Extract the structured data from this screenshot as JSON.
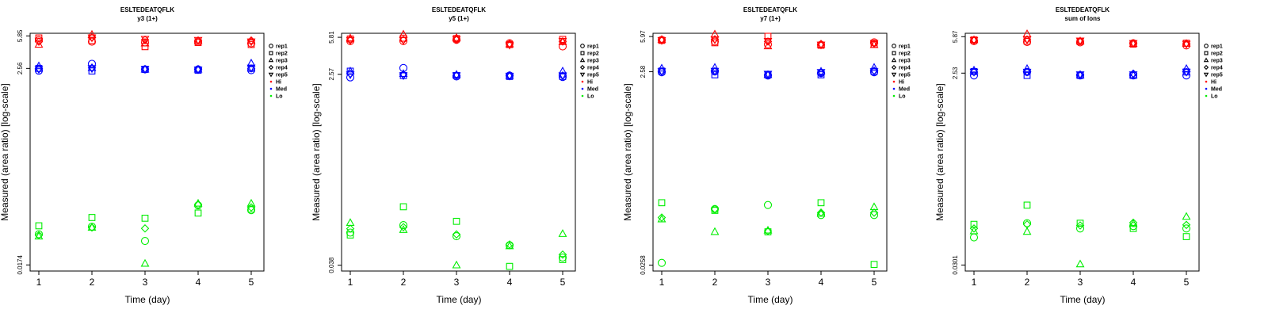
{
  "colors": {
    "Hi": "#ff0000",
    "Med": "#0000ff",
    "Lo": "#00ee00"
  },
  "chart_data": [
    {
      "type": "scatter",
      "title": "ESLTEDEATQFLK",
      "subtitle": "y3 (1+)",
      "xlabel": "Time (day)",
      "ylabel": "Measured (area ratio) [log-scale]",
      "x_ticks": [
        "1",
        "2",
        "3",
        "4",
        "5"
      ],
      "y_ticks": [
        0.0174,
        2.56,
        5.85
      ],
      "y_tick_labels": [
        "0.0174",
        "2.56",
        "5.85"
      ],
      "y_scale": "log",
      "ylim": [
        0.0149,
        6.25
      ],
      "legend": {
        "placement": "right",
        "entries": [
          "rep1",
          "rep2",
          "rep3",
          "rep4",
          "rep5",
          "Hi",
          "Med",
          "Lo"
        ]
      },
      "series": [
        {
          "group": "Hi",
          "rep": "rep1",
          "marker": "circle",
          "values": [
            5.25,
            5.05,
            4.95,
            5.05,
            4.85
          ]
        },
        {
          "group": "Hi",
          "rep": "rep2",
          "marker": "square",
          "values": [
            5.55,
            5.2,
            4.45,
            4.95,
            4.7
          ]
        },
        {
          "group": "Hi",
          "rep": "rep3",
          "marker": "triangle",
          "values": [
            4.7,
            6.05,
            4.85,
            5.15,
            5.15
          ]
        },
        {
          "group": "Hi",
          "rep": "rep4",
          "marker": "diamond",
          "values": [
            5.05,
            5.6,
            5.3,
            5.2,
            5.2
          ]
        },
        {
          "group": "Hi",
          "rep": "rep5",
          "marker": "triangle-down",
          "values": [
            5.15,
            5.6,
            5.4,
            5.25,
            5.05
          ]
        },
        {
          "group": "Med",
          "rep": "rep1",
          "marker": "circle",
          "values": [
            2.42,
            2.88,
            2.5,
            2.5,
            2.45
          ]
        },
        {
          "group": "Med",
          "rep": "rep2",
          "marker": "square",
          "values": [
            2.56,
            2.4,
            2.5,
            2.45,
            2.56
          ]
        },
        {
          "group": "Med",
          "rep": "rep3",
          "marker": "triangle",
          "values": [
            2.72,
            2.6,
            2.5,
            2.5,
            2.92
          ]
        },
        {
          "group": "Med",
          "rep": "rep4",
          "marker": "diamond",
          "values": [
            2.55,
            2.6,
            2.52,
            2.5,
            2.56
          ]
        },
        {
          "group": "Med",
          "rep": "rep5",
          "marker": "triangle-down",
          "values": [
            2.5,
            2.56,
            2.52,
            2.48,
            2.6
          ]
        },
        {
          "group": "Lo",
          "rep": "rep1",
          "marker": "circle",
          "values": [
            0.038,
            0.046,
            0.032,
            0.079,
            0.07
          ]
        },
        {
          "group": "Lo",
          "rep": "rep2",
          "marker": "square",
          "values": [
            0.047,
            0.058,
            0.057,
            0.065,
            0.072
          ]
        },
        {
          "group": "Lo",
          "rep": "rep3",
          "marker": "triangle",
          "values": [
            0.036,
            0.045,
            0.018,
            0.083,
            0.083
          ]
        },
        {
          "group": "Lo",
          "rep": "rep4",
          "marker": "diamond",
          "values": [
            0.037,
            0.045,
            0.044,
            0.08,
            0.075
          ]
        }
      ]
    },
    {
      "type": "scatter",
      "title": "ESLTEDEATQFLK",
      "subtitle": "y5 (1+)",
      "xlabel": "Time (day)",
      "ylabel": "Measured (area ratio) [log-scale]",
      "x_ticks": [
        "1",
        "2",
        "3",
        "4",
        "5"
      ],
      "y_ticks": [
        0.038,
        2.57,
        5.81
      ],
      "y_tick_labels": [
        "0.038",
        "2.57",
        "5.81"
      ],
      "y_scale": "log",
      "ylim": [
        0.0334,
        6.35
      ],
      "legend": {
        "placement": "right",
        "entries": [
          "rep1",
          "rep2",
          "rep3",
          "rep4",
          "rep5",
          "Hi",
          "Med",
          "Lo"
        ]
      },
      "series": [
        {
          "group": "Hi",
          "rep": "rep1",
          "marker": "circle",
          "values": [
            5.35,
            5.35,
            5.5,
            5.1,
            4.75
          ]
        },
        {
          "group": "Hi",
          "rep": "rep2",
          "marker": "square",
          "values": [
            5.6,
            5.7,
            5.65,
            4.95,
            5.55
          ]
        },
        {
          "group": "Hi",
          "rep": "rep3",
          "marker": "triangle",
          "values": [
            5.7,
            6.2,
            5.75,
            5.0,
            5.25
          ]
        },
        {
          "group": "Hi",
          "rep": "rep4",
          "marker": "diamond",
          "values": [
            5.45,
            5.5,
            5.5,
            5.05,
            5.3
          ]
        },
        {
          "group": "Hi",
          "rep": "rep5",
          "marker": "triangle-down",
          "values": [
            5.45,
            5.45,
            5.55,
            4.9,
            5.35
          ]
        },
        {
          "group": "Med",
          "rep": "rep1",
          "marker": "circle",
          "values": [
            2.4,
            2.95,
            2.45,
            2.5,
            2.42
          ]
        },
        {
          "group": "Med",
          "rep": "rep2",
          "marker": "square",
          "values": [
            2.75,
            2.5,
            2.5,
            2.45,
            2.45
          ]
        },
        {
          "group": "Med",
          "rep": "rep3",
          "marker": "triangle",
          "values": [
            2.75,
            2.6,
            2.55,
            2.5,
            2.75
          ]
        },
        {
          "group": "Med",
          "rep": "rep4",
          "marker": "diamond",
          "values": [
            2.6,
            2.55,
            2.5,
            2.5,
            2.5
          ]
        },
        {
          "group": "Med",
          "rep": "rep5",
          "marker": "triangle-down",
          "values": [
            2.55,
            2.5,
            2.5,
            2.48,
            2.5
          ]
        },
        {
          "group": "Lo",
          "rep": "rep1",
          "marker": "circle",
          "values": [
            0.078,
            0.092,
            0.072,
            0.059,
            0.045
          ]
        },
        {
          "group": "Lo",
          "rep": "rep2",
          "marker": "square",
          "values": [
            0.074,
            0.138,
            0.1,
            0.037,
            0.043
          ]
        },
        {
          "group": "Lo",
          "rep": "rep3",
          "marker": "triangle",
          "values": [
            0.097,
            0.083,
            0.038,
            0.058,
            0.076
          ]
        },
        {
          "group": "Lo",
          "rep": "rep4",
          "marker": "diamond",
          "values": [
            0.085,
            0.088,
            0.075,
            0.06,
            0.048
          ]
        }
      ]
    },
    {
      "type": "scatter",
      "title": "ESLTEDEATQFLK",
      "subtitle": "y7 (1+)",
      "xlabel": "Time (day)",
      "ylabel": "Measured (area ratio) [log-scale]",
      "x_ticks": [
        "1",
        "2",
        "3",
        "4",
        "5"
      ],
      "y_ticks": [
        0.0258,
        2.58,
        5.97
      ],
      "y_tick_labels": [
        "0.0258",
        "2.58",
        "5.97"
      ],
      "y_scale": "log",
      "ylim": [
        0.0224,
        6.45
      ],
      "legend": {
        "placement": "right",
        "entries": [
          "rep1",
          "rep2",
          "rep3",
          "rep4",
          "rep5",
          "Hi",
          "Med",
          "Lo"
        ]
      },
      "series": [
        {
          "group": "Hi",
          "rep": "rep1",
          "marker": "circle",
          "values": [
            5.5,
            5.3,
            4.95,
            4.9,
            5.2
          ]
        },
        {
          "group": "Hi",
          "rep": "rep2",
          "marker": "square",
          "values": [
            5.45,
            5.15,
            6.0,
            4.85,
            4.95
          ]
        },
        {
          "group": "Hi",
          "rep": "rep3",
          "marker": "triangle",
          "values": [
            5.55,
            6.3,
            4.75,
            4.95,
            4.9
          ]
        },
        {
          "group": "Hi",
          "rep": "rep4",
          "marker": "diamond",
          "values": [
            5.5,
            5.6,
            5.3,
            5.0,
            5.05
          ]
        },
        {
          "group": "Hi",
          "rep": "rep5",
          "marker": "triangle-down",
          "values": [
            5.45,
            5.55,
            5.35,
            4.9,
            5.1
          ]
        },
        {
          "group": "Med",
          "rep": "rep1",
          "marker": "circle",
          "values": [
            2.55,
            2.6,
            2.36,
            2.5,
            2.55
          ]
        },
        {
          "group": "Med",
          "rep": "rep2",
          "marker": "square",
          "values": [
            2.62,
            2.4,
            2.4,
            2.4,
            2.6
          ]
        },
        {
          "group": "Med",
          "rep": "rep3",
          "marker": "triangle",
          "values": [
            2.8,
            2.85,
            2.4,
            2.6,
            2.85
          ]
        },
        {
          "group": "Med",
          "rep": "rep4",
          "marker": "diamond",
          "values": [
            2.6,
            2.6,
            2.4,
            2.5,
            2.65
          ]
        },
        {
          "group": "Med",
          "rep": "rep5",
          "marker": "triangle-down",
          "values": [
            2.6,
            2.62,
            2.45,
            2.55,
            2.6
          ]
        },
        {
          "group": "Lo",
          "rep": "rep1",
          "marker": "circle",
          "values": [
            0.0272,
            0.098,
            0.108,
            0.085,
            0.085
          ]
        },
        {
          "group": "Lo",
          "rep": "rep2",
          "marker": "square",
          "values": [
            0.114,
            0.095,
            0.057,
            0.114,
            0.0262
          ]
        },
        {
          "group": "Lo",
          "rep": "rep3",
          "marker": "triangle",
          "values": [
            0.077,
            0.057,
            0.059,
            0.088,
            0.103
          ]
        },
        {
          "group": "Lo",
          "rep": "rep4",
          "marker": "diamond",
          "values": [
            0.08,
            0.098,
            0.058,
            0.09,
            0.09
          ]
        }
      ]
    },
    {
      "type": "scatter",
      "title": "ESLTEDEATQFLK",
      "subtitle": "sum of Ions",
      "xlabel": "Time (day)",
      "ylabel": "Measured (area ratio) [log-scale]",
      "x_ticks": [
        "1",
        "2",
        "3",
        "4",
        "5"
      ],
      "y_ticks": [
        0.0301,
        2.53,
        5.87
      ],
      "y_tick_labels": [
        "0.0301",
        "2.53",
        "5.87"
      ],
      "y_scale": "log",
      "ylim": [
        0.0262,
        6.35
      ],
      "legend": {
        "placement": "right",
        "entries": [
          "rep1",
          "rep2",
          "rep3",
          "rep4",
          "rep5",
          "Hi",
          "Med",
          "Lo"
        ]
      },
      "series": [
        {
          "group": "Hi",
          "rep": "rep1",
          "marker": "circle",
          "values": [
            5.3,
            5.2,
            5.15,
            5.05,
            4.8
          ]
        },
        {
          "group": "Hi",
          "rep": "rep2",
          "marker": "square",
          "values": [
            5.45,
            5.3,
            5.25,
            4.95,
            5.05
          ]
        },
        {
          "group": "Hi",
          "rep": "rep3",
          "marker": "triangle",
          "values": [
            5.45,
            6.25,
            5.3,
            5.0,
            5.0
          ]
        },
        {
          "group": "Hi",
          "rep": "rep4",
          "marker": "diamond",
          "values": [
            5.4,
            5.5,
            5.3,
            5.05,
            5.0
          ]
        },
        {
          "group": "Hi",
          "rep": "rep5",
          "marker": "triangle-down",
          "values": [
            5.4,
            5.5,
            5.35,
            5.05,
            4.95
          ]
        },
        {
          "group": "Med",
          "rep": "rep1",
          "marker": "circle",
          "values": [
            2.4,
            2.6,
            2.4,
            2.4,
            2.4
          ]
        },
        {
          "group": "Med",
          "rep": "rep2",
          "marker": "square",
          "values": [
            2.62,
            2.4,
            2.4,
            2.4,
            2.6
          ]
        },
        {
          "group": "Med",
          "rep": "rep3",
          "marker": "triangle",
          "values": [
            2.7,
            2.8,
            2.42,
            2.42,
            2.8
          ]
        },
        {
          "group": "Med",
          "rep": "rep4",
          "marker": "diamond",
          "values": [
            2.6,
            2.6,
            2.45,
            2.5,
            2.6
          ]
        },
        {
          "group": "Med",
          "rep": "rep5",
          "marker": "triangle-down",
          "values": [
            2.6,
            2.6,
            2.45,
            2.45,
            2.6
          ]
        },
        {
          "group": "Lo",
          "rep": "rep1",
          "marker": "circle",
          "values": [
            0.057,
            0.079,
            0.07,
            0.074,
            0.07
          ]
        },
        {
          "group": "Lo",
          "rep": "rep2",
          "marker": "square",
          "values": [
            0.077,
            0.12,
            0.079,
            0.07,
            0.058
          ]
        },
        {
          "group": "Lo",
          "rep": "rep3",
          "marker": "triangle",
          "values": [
            0.066,
            0.065,
            0.0307,
            0.078,
            0.092
          ]
        },
        {
          "group": "Lo",
          "rep": "rep4",
          "marker": "diamond",
          "values": [
            0.07,
            0.077,
            0.075,
            0.08,
            0.076
          ]
        }
      ]
    }
  ]
}
